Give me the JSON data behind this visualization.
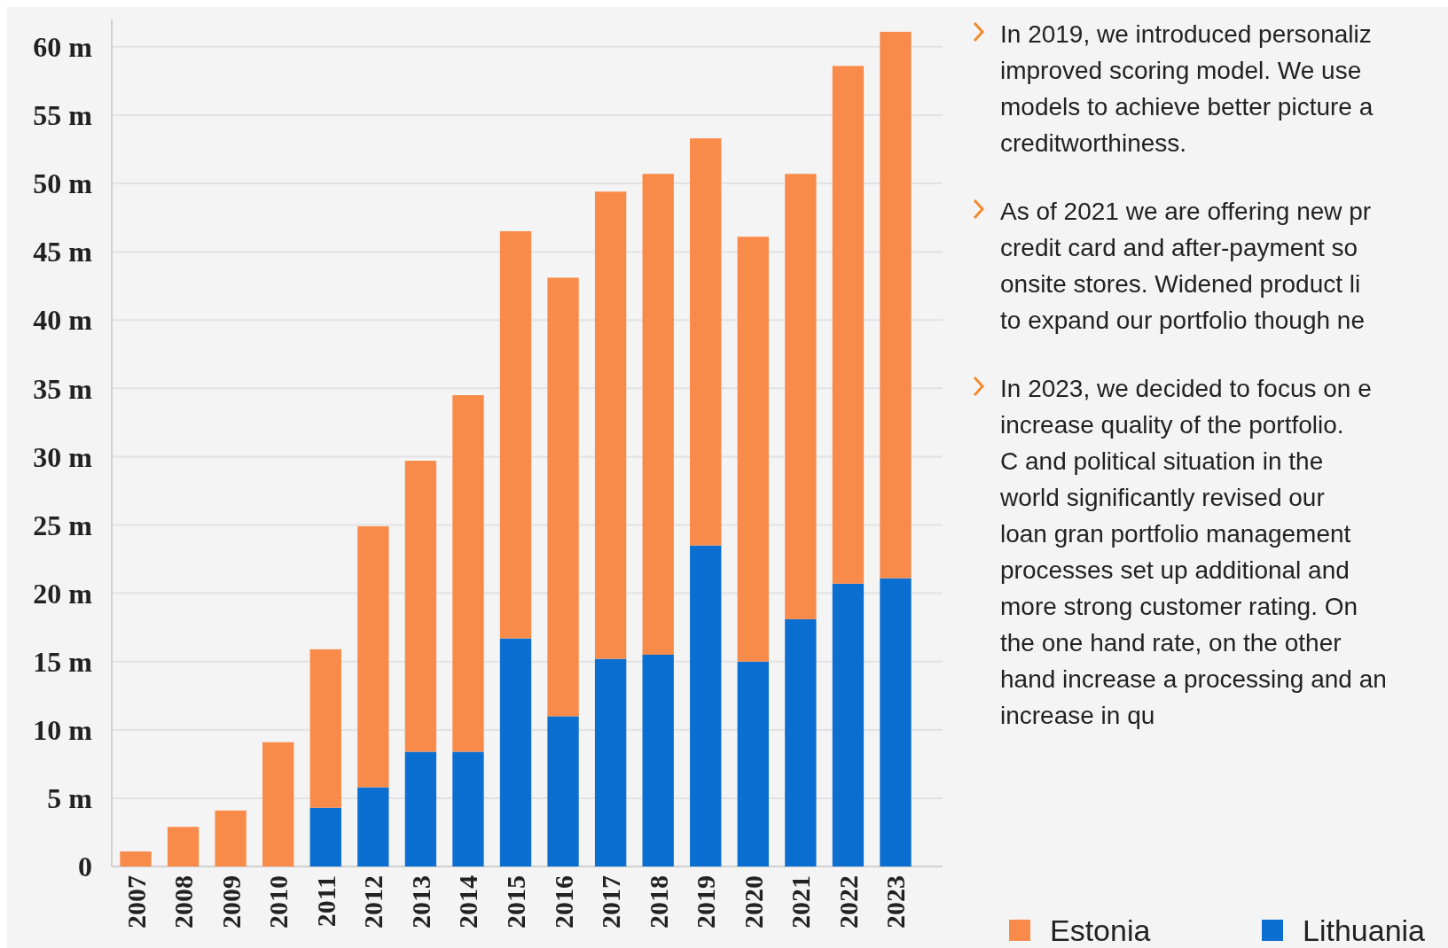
{
  "chart_data": {
    "type": "bar",
    "stacked": true,
    "categories": [
      "2007",
      "2008",
      "2009",
      "2010",
      "2011",
      "2012",
      "2013",
      "2014",
      "2015",
      "2016",
      "2017",
      "2018",
      "2019",
      "2020",
      "2021",
      "2022",
      "2023"
    ],
    "series": [
      {
        "name": "Lithuania",
        "color": "#0a6fd1",
        "values": [
          0,
          0,
          0,
          0,
          4.3,
          5.8,
          8.4,
          8.4,
          16.7,
          11.0,
          15.2,
          15.5,
          23.5,
          15.0,
          18.1,
          20.7,
          21.1
        ]
      },
      {
        "name": "Estonia",
        "color": "#f98b4a",
        "values": [
          1.1,
          2.9,
          4.1,
          9.1,
          11.6,
          19.1,
          21.3,
          26.1,
          29.8,
          32.1,
          34.2,
          35.2,
          29.8,
          31.1,
          32.6,
          37.9,
          40.0
        ]
      }
    ],
    "ylim": [
      0,
      62
    ],
    "yticks": [
      {
        "value": 0,
        "label": "0"
      },
      {
        "value": 5,
        "label": "5 m"
      },
      {
        "value": 10,
        "label": "10 m"
      },
      {
        "value": 15,
        "label": "15 m"
      },
      {
        "value": 20,
        "label": "20 m"
      },
      {
        "value": 25,
        "label": "25 m"
      },
      {
        "value": 30,
        "label": "30 m"
      },
      {
        "value": 35,
        "label": "35 m"
      },
      {
        "value": 40,
        "label": "40 m"
      },
      {
        "value": 45,
        "label": "45 m"
      },
      {
        "value": 50,
        "label": "50 m"
      },
      {
        "value": 55,
        "label": "55 m"
      },
      {
        "value": 60,
        "label": "60 m"
      }
    ],
    "grid": "y",
    "legend": "bottom right",
    "annotations": [
      "In 2019, we introduced personaliz improved scoring model. We use models to achieve better picture a creditworthiness.",
      "As of 2021 we are offering new pr credit card and after-payment so onsite stores. Widened product li to expand our portfolio though ne",
      "In 2023, we decided to focus on e increase quality of the portfolio. C and political situation in the world significantly revised our loan gran portfolio management processes set up additional and more strong customer rating. On the one hand rate, on the other hand increase a processing and an increase in qu"
    ]
  }
}
